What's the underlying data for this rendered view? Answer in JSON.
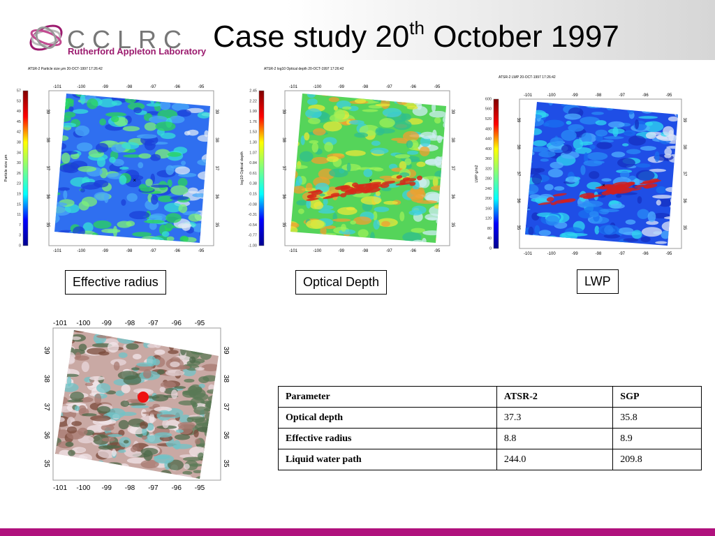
{
  "header": {
    "logo": "CCLRC",
    "lab": "Rutherford Appleton Laboratory",
    "title": {
      "main": "Case study 20",
      "sup": "th",
      "rest": " October 1997"
    }
  },
  "panels": [
    {
      "caption": "Effective radius",
      "heading": "ATSR-2 Particle size μm 20-OCT-1997 17:26:42",
      "colorbar_label": "Particle size μm",
      "colorbar_ticks": [
        "57",
        "53",
        "49",
        "45",
        "42",
        "38",
        "34",
        "30",
        "26",
        "23",
        "19",
        "15",
        "11",
        "7",
        "3",
        "0"
      ],
      "lon_ticks": [
        "-101",
        "-100",
        "-99",
        "-98",
        "-97",
        "-96",
        "-95"
      ],
      "lat_ticks": [
        "39",
        "38",
        "37",
        "36",
        "35"
      ]
    },
    {
      "caption": "Optical Depth",
      "heading": "ATSR-2 log10 Optical depth 20-OCT-1997 17:26:42",
      "colorbar_label": "log10 Optical depth",
      "colorbar_ticks": [
        "2.45",
        "2.22",
        "1.99",
        "1.76",
        "1.53",
        "1.30",
        "1.07",
        "0.84",
        "0.61",
        "0.38",
        "0.15",
        "-0.08",
        "-0.31",
        "-0.54",
        "-0.77",
        "-1.00"
      ],
      "lon_ticks": [
        "-101",
        "-100",
        "-99",
        "-98",
        "-97",
        "-96",
        "-95"
      ],
      "lat_ticks": [
        "39",
        "38",
        "37",
        "36",
        "35"
      ]
    },
    {
      "caption": "LWP",
      "heading": "ATSR-2 LWP 20-OCT-1997 17:26:42",
      "colorbar_label": "LWP g/m2",
      "colorbar_ticks": [
        "600",
        "560",
        "520",
        "480",
        "440",
        "400",
        "360",
        "320",
        "280",
        "240",
        "200",
        "160",
        "120",
        "80",
        "40",
        "0"
      ],
      "lon_ticks": [
        "-101",
        "-100",
        "-99",
        "-98",
        "-97",
        "-96",
        "-95"
      ],
      "lat_ticks": [
        "39",
        "38",
        "37",
        "36",
        "35"
      ]
    }
  ],
  "rgb_image": {
    "lon_ticks": [
      "-101",
      "-100",
      "-99",
      "-98",
      "-97",
      "-96",
      "-95"
    ],
    "lat_ticks": [
      "39",
      "38",
      "37",
      "36",
      "35"
    ]
  },
  "table": {
    "header": [
      "Parameter",
      "ATSR-2",
      "SGP"
    ],
    "rows": [
      [
        "Optical depth",
        "37.3",
        "35.8"
      ],
      [
        "Effective radius",
        "8.8",
        "8.9"
      ],
      [
        "Liquid water path",
        "244.0",
        "209.8"
      ]
    ]
  }
}
